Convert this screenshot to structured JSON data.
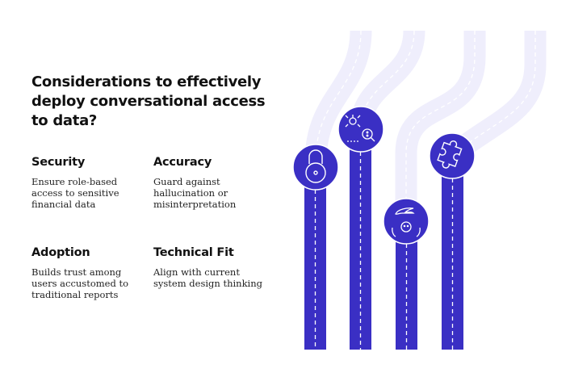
{
  "title": "Considerations to effectively deploy conversational access to data?",
  "considerations": [
    {
      "heading": "Security",
      "text": "Ensure role-based access to sensitive financial data",
      "icon": "padlock-icon"
    },
    {
      "heading": "Accuracy",
      "text": "Guard against hallucination or misinterpretation",
      "icon": "bug-magnifier-icon"
    },
    {
      "heading": "Adoption",
      "text": "Builds trust among users accustomed to traditional reports",
      "icon": "hand-over-person-icon"
    },
    {
      "heading": "Technical Fit",
      "text": "Align with current system design thinking",
      "icon": "puzzle-piece-icon"
    }
  ],
  "colors": {
    "primary": "#3a2fc4",
    "track": "#efeefc",
    "text": "#111111"
  }
}
